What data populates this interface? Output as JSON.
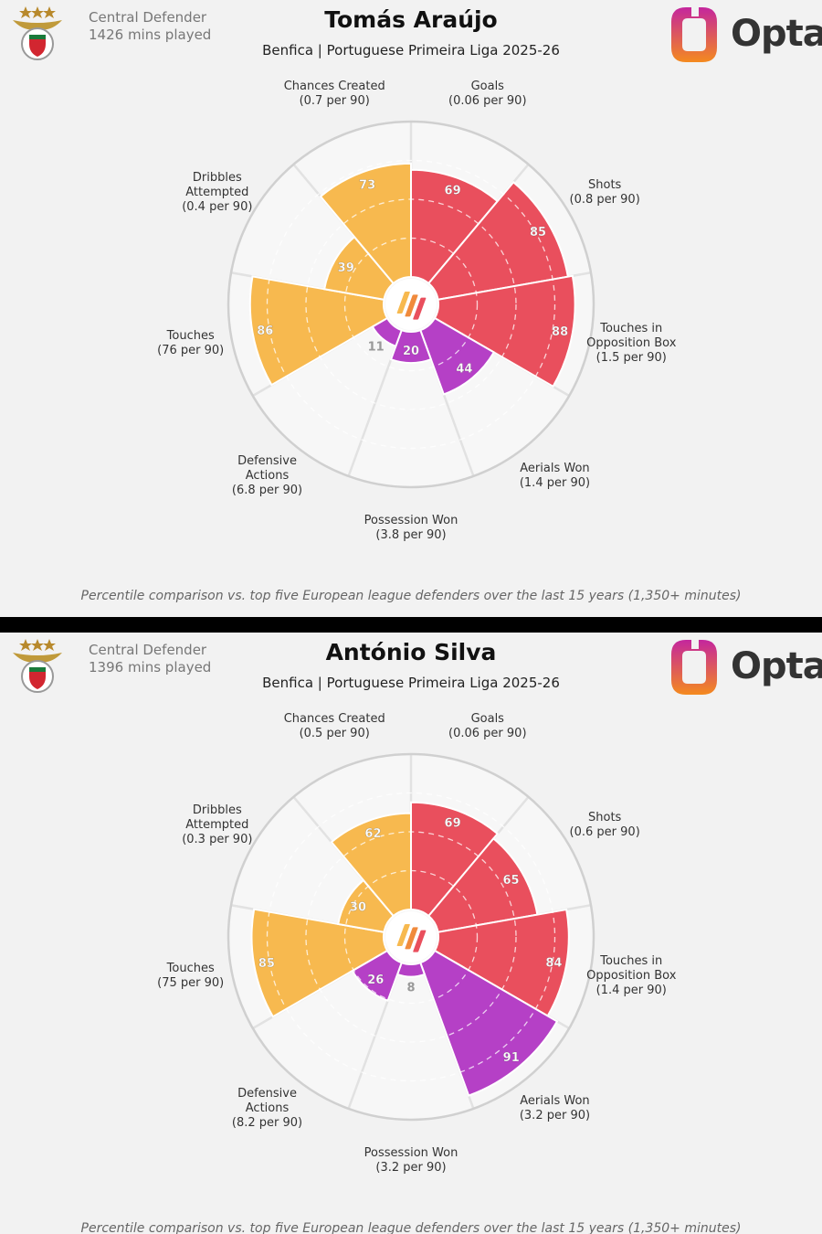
{
  "chart_data": [
    {
      "type": "polar-bar",
      "title": "Tomás Araújo",
      "subtitle": "Benfica | Portuguese Primeira Liga 2025-26",
      "position": "Central Defender",
      "minutes": "1426 mins played",
      "logo_text": "Opta",
      "categories": [
        "Goals",
        "Shots",
        "Touches in Opposition Box",
        "Aerials Won",
        "Possession Won",
        "Defensive Actions",
        "Touches",
        "Dribbles Attempted",
        "Chances Created"
      ],
      "sublabels": [
        "(0.06 per 90)",
        "(0.8 per 90)",
        "(1.5 per 90)",
        "(1.4 per 90)",
        "(3.8 per 90)",
        "(6.8 per 90)",
        "(76 per 90)",
        "(0.4 per 90)",
        "(0.7 per 90)"
      ],
      "values": [
        69,
        85,
        88,
        44,
        20,
        11,
        86,
        39,
        73
      ],
      "colors": [
        "#e94f5d",
        "#e94f5d",
        "#e94f5d",
        "#b540c6",
        "#b540c6",
        "#b540c6",
        "#f7b94f",
        "#f7b94f",
        "#f7b94f"
      ],
      "ylim": [
        0,
        100
      ],
      "yticks": [
        25,
        50,
        75,
        100
      ],
      "grid": true,
      "footnote": "Percentile comparison vs. top five European league defenders over the last 15 years (1,350+ minutes)"
    },
    {
      "type": "polar-bar",
      "title": "António Silva",
      "subtitle": "Benfica | Portuguese Primeira Liga 2025-26",
      "position": "Central Defender",
      "minutes": "1396 mins played",
      "logo_text": "Opta",
      "categories": [
        "Goals",
        "Shots",
        "Touches in Opposition Box",
        "Aerials Won",
        "Possession Won",
        "Defensive Actions",
        "Touches",
        "Dribbles Attempted",
        "Chances Created"
      ],
      "sublabels": [
        "(0.06 per 90)",
        "(0.6 per 90)",
        "(1.4 per 90)",
        "(3.2 per 90)",
        "(3.2 per 90)",
        "(8.2 per 90)",
        "(75 per 90)",
        "(0.3 per 90)",
        "(0.5 per 90)"
      ],
      "values": [
        69,
        65,
        84,
        91,
        8,
        26,
        85,
        30,
        62
      ],
      "colors": [
        "#e94f5d",
        "#e94f5d",
        "#e94f5d",
        "#b540c6",
        "#b540c6",
        "#b540c6",
        "#f7b94f",
        "#f7b94f",
        "#f7b94f"
      ],
      "ylim": [
        0,
        100
      ],
      "yticks": [
        25,
        50,
        75,
        100
      ],
      "grid": true,
      "footnote": "Percentile comparison vs. top five European league defenders over the last 15 years (1,350+ minutes)"
    }
  ]
}
